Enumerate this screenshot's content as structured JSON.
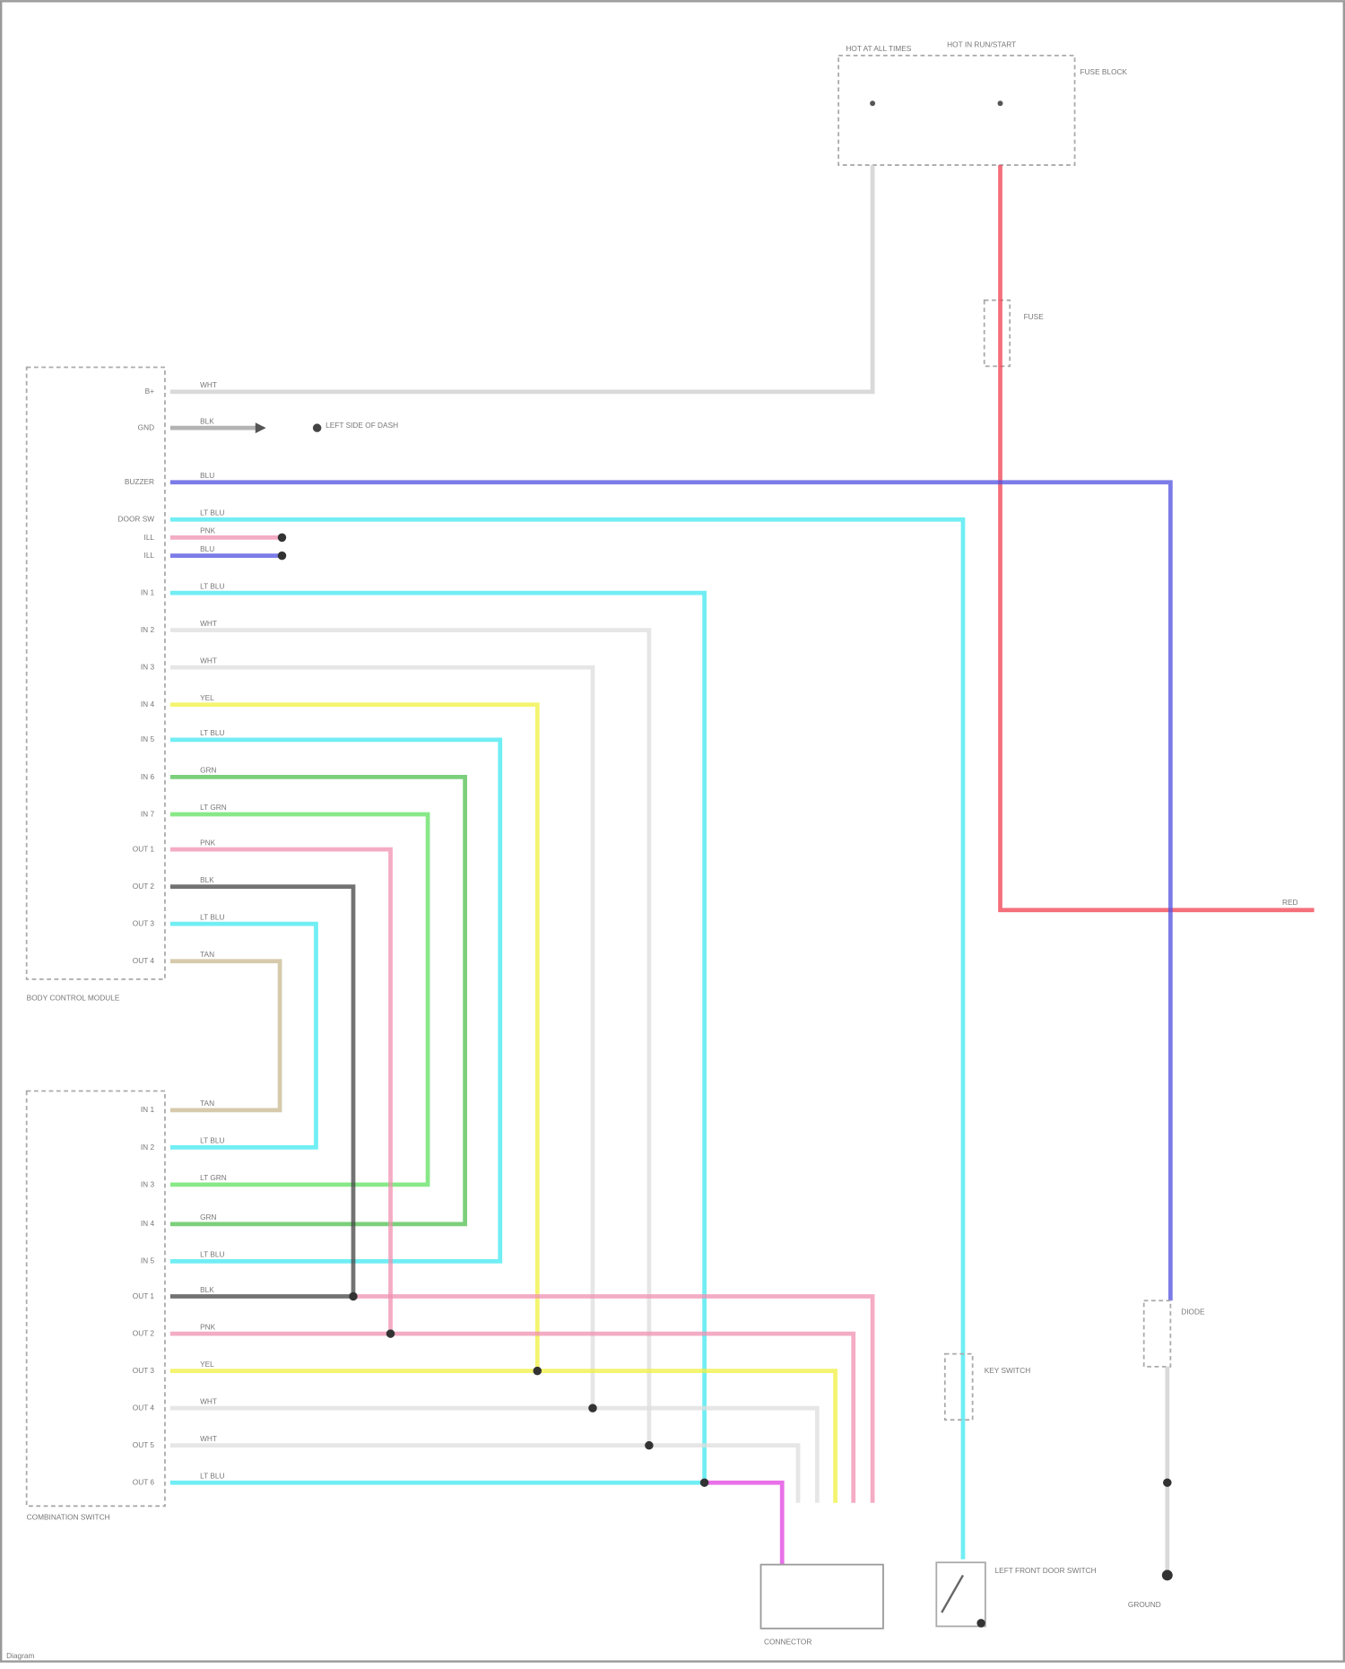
{
  "diagram": {
    "components": {
      "fuse_hot": "HOT AT ALL TIMES",
      "fuse_run": "HOT IN RUN/START",
      "fuse_block": "FUSE BLOCK",
      "inline_fuse": "FUSE",
      "bcm": "BODY CONTROL MODULE",
      "ground_left": "LEFT SIDE OF DASH",
      "combo_switch": "COMBINATION SWITCH",
      "door_switch": "LEFT FRONT DOOR SWITCH",
      "key_switch": "KEY SWITCH",
      "ground_right": "GROUND",
      "connector": "CONNECTOR",
      "diode": "DIODE",
      "output": "RED",
      "footer": "Diagram"
    },
    "bcm_pins": [
      "B+",
      "GND",
      "BUZZER",
      "DOOR SW",
      "ILL",
      "ILL",
      "IN 1",
      "IN 2",
      "IN 3",
      "IN 4",
      "IN 5",
      "IN 6",
      "IN 7",
      "OUT 1",
      "OUT 2",
      "OUT 3",
      "OUT 4"
    ],
    "bcm_wires": [
      "WHT",
      "BLK",
      "BLU",
      "LT BLU",
      "PNK",
      "BLU",
      "LT BLU",
      "WHT",
      "WHT",
      "YEL",
      "LT BLU",
      "GRN",
      "LT GRN",
      "PNK",
      "BLK",
      "LT BLU",
      "TAN"
    ],
    "combo_pins": [
      "IN 1",
      "IN 2",
      "IN 3",
      "IN 4",
      "IN 5",
      "OUT 1",
      "OUT 2",
      "OUT 3",
      "OUT 4",
      "OUT 5",
      "OUT 6"
    ],
    "combo_wires": [
      "TAN",
      "LT BLU",
      "LT GRN",
      "GRN",
      "LT BLU",
      "BLK",
      "PNK",
      "YEL",
      "WHT",
      "WHT",
      "LT BLU"
    ],
    "wire_colors": {
      "red": "#f04050",
      "blue": "#5050e0",
      "cyan": "#40e8f0",
      "yellow": "#f0f040",
      "green": "#50c050",
      "lgreen": "#60e060",
      "pink": "#f090b0",
      "gray": "#444444",
      "white": "#cccccc",
      "tan": "#c8b890",
      "magenta": "#e040e0"
    }
  }
}
